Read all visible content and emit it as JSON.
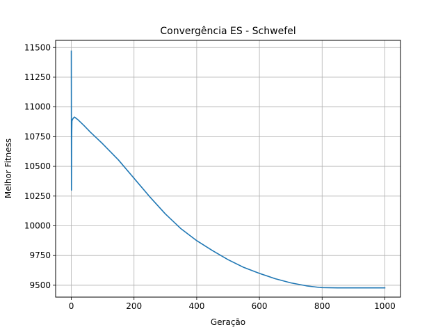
{
  "chart_data": {
    "type": "line",
    "title": "Convergência ES - Schwefel",
    "xlabel": "Geração",
    "ylabel": "Melhor Fitness",
    "xlim": [
      -50,
      1050
    ],
    "ylim": [
      9400,
      11560
    ],
    "xticks": [
      0,
      200,
      400,
      600,
      800,
      1000
    ],
    "yticks": [
      9500,
      9750,
      10000,
      10250,
      10500,
      10750,
      11000,
      11250,
      11500
    ],
    "grid": true,
    "legend": "none",
    "series": [
      {
        "color": "#1f77b4",
        "x": [
          0,
          0.5,
          1,
          2,
          3,
          5,
          8,
          10,
          20,
          40,
          60,
          80,
          100,
          150,
          200,
          250,
          300,
          350,
          400,
          450,
          500,
          550,
          600,
          650,
          700,
          750,
          790,
          800,
          850,
          900,
          950,
          1000
        ],
        "y": [
          11470,
          10300,
          10720,
          10880,
          10890,
          10900,
          10910,
          10915,
          10895,
          10845,
          10790,
          10740,
          10690,
          10555,
          10400,
          10245,
          10100,
          9975,
          9875,
          9792,
          9715,
          9650,
          9600,
          9555,
          9520,
          9495,
          9482,
          9480,
          9478,
          9478,
          9478,
          9478
        ]
      }
    ]
  }
}
